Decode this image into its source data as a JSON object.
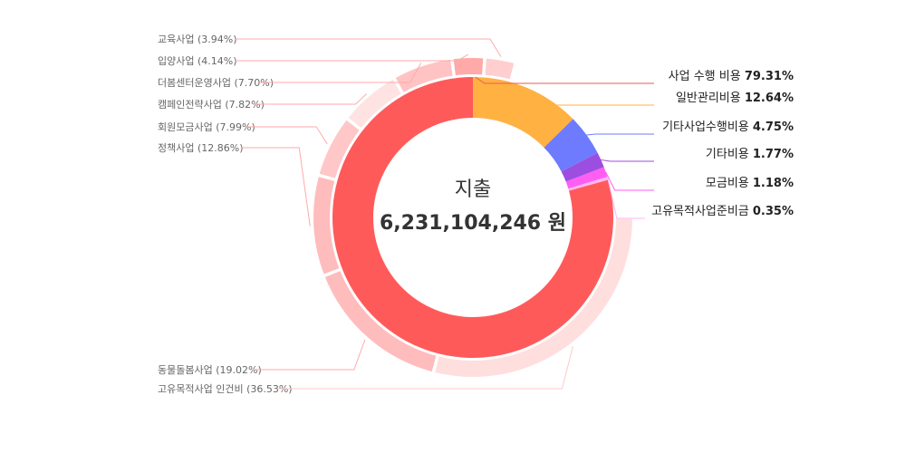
{
  "chart_data": {
    "type": "pie",
    "center": {
      "title": "지출",
      "value": "6,231,104,246 원"
    },
    "inner": [
      {
        "name": "사업 수행 비용",
        "pct": "79.31%",
        "value": 79.31,
        "color": "#ff5a5a",
        "line": "#e85a5a"
      },
      {
        "name": "일반관리비용",
        "pct": "12.64%",
        "value": 12.64,
        "color": "#ffb142",
        "line": "#ffb142"
      },
      {
        "name": "기타사업수행비용",
        "pct": "4.75%",
        "value": 4.75,
        "color": "#6e7bff",
        "line": "#6e7bff"
      },
      {
        "name": "기타비용",
        "pct": "1.77%",
        "value": 1.77,
        "color": "#9b4ee0",
        "line": "#9b4ee0"
      },
      {
        "name": "모금비용",
        "pct": "1.18%",
        "value": 1.18,
        "color": "#ff5ef2",
        "line": "#ff5ef2"
      },
      {
        "name": "고유목적사업준비금",
        "pct": "0.35%",
        "value": 0.35,
        "color": "#ffb6f4",
        "line": "#ffb6f4"
      }
    ],
    "outer": [
      {
        "label": "고유목적사업 인건비 (36.53%)",
        "value": 36.53,
        "color": "#ffdede"
      },
      {
        "label": "동물돌봄사업 (19.02%)",
        "value": 19.02,
        "color": "#ffbcbc"
      },
      {
        "label": "정책사업 (12.86%)",
        "value": 12.86,
        "color": "#ffbcbc"
      },
      {
        "label": "회원모금사업 (7.99%)",
        "value": 7.99,
        "color": "#ffc7c7"
      },
      {
        "label": "캠페인전략사업 (7.82%)",
        "value": 7.82,
        "color": "#ffe3e3"
      },
      {
        "label": "더봄센터운영사업 (7.70%)",
        "value": 7.7,
        "color": "#ffc3c3"
      },
      {
        "label": "입양사업 (4.14%)",
        "value": 4.14,
        "color": "#ffa9a9"
      },
      {
        "label": "교육사업 (3.94%)",
        "value": 3.94,
        "color": "#ffcfcf"
      }
    ]
  }
}
